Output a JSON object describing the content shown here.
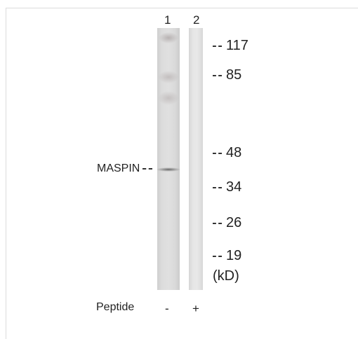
{
  "lanes": [
    "1",
    "2"
  ],
  "protein_label": "MASPIN",
  "markers": [
    "117",
    "85",
    "48",
    "34",
    "26",
    "19"
  ],
  "unit": "(kD)",
  "peptide": {
    "label": "Peptide",
    "signs": [
      "-",
      "+"
    ]
  }
}
